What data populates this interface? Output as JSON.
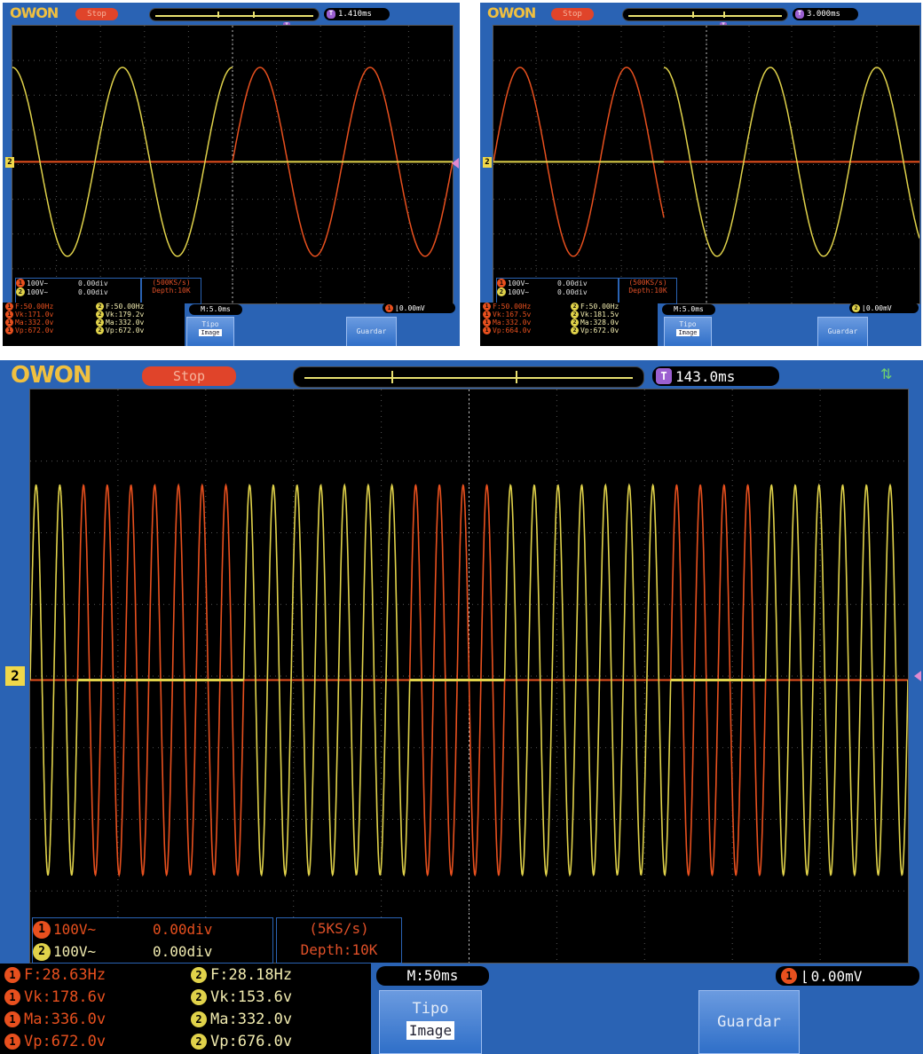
{
  "brand": "OWON",
  "colors": {
    "ch1": "#e8501e",
    "ch2": "#e0d24a",
    "frame": "#2a63b4",
    "trigger": "#9b5fd0"
  },
  "icons": {
    "usb": "usb-icon",
    "trigger_edge": "falling-edge-icon"
  },
  "scopes": [
    {
      "id": "small-left",
      "status": "Stop",
      "trigger_time": "1.410ms",
      "ch1_scale": "100V~",
      "ch1_offset": "0.00div",
      "ch2_scale": "100V~",
      "ch2_offset": "0.00div",
      "sample_rate": "(500KS/s)",
      "depth": "Depth:10K",
      "ch1_freq": "F:50.00Hz",
      "ch1_vk": "Vk:171.0v",
      "ch1_ma": "Ma:332.0v",
      "ch1_vp": "Vp:672.0v",
      "ch2_freq": "F:50.00Hz",
      "ch2_vk": "Vk:179.2v",
      "ch2_ma": "Ma:332.0v",
      "ch2_vp": "Vp:672.0v",
      "timebase": "M:5.0ms",
      "trigger_level": "0.00mV",
      "btn_tipo": "Tipo",
      "btn_image": "Image",
      "btn_guardar": "Guardar",
      "wave": {
        "ch2_start": 0.0,
        "ch2_end": 0.5,
        "ch1_start": 0.5,
        "ch1_end": 1.0,
        "cycles": 4
      }
    },
    {
      "id": "small-right",
      "status": "Stop",
      "trigger_time": "3.000ms",
      "ch1_scale": "100V~",
      "ch1_offset": "0.00div",
      "ch2_scale": "100V~",
      "ch2_offset": "0.00div",
      "sample_rate": "(500KS/s)",
      "depth": "Depth:10K",
      "ch1_freq": "F:50.00Hz",
      "ch1_vk": "Vk:167.5v",
      "ch1_ma": "Ma:332.0v",
      "ch1_vp": "Vp:664.0v",
      "ch2_freq": "F:50.00Hz",
      "ch2_vk": "Vk:181.5v",
      "ch2_ma": "Ma:328.0v",
      "ch2_vp": "Vp:672.0v",
      "timebase": "M:5.0ms",
      "trigger_level": "0.00mV",
      "btn_tipo": "Tipo",
      "btn_image": "Image",
      "btn_guardar": "Guardar",
      "wave": {
        "ch1_start": 0.0,
        "ch1_end": 0.4,
        "ch2_start": 0.4,
        "ch2_end": 1.0,
        "cycles": 4
      }
    },
    {
      "id": "large",
      "status": "Stop",
      "trigger_time": "143.0ms",
      "ch1_scale": "100V~",
      "ch1_offset": "0.00div",
      "ch2_scale": "100V~",
      "ch2_offset": "0.00div",
      "sample_rate": "(5KS/s)",
      "depth": "Depth:10K",
      "ch1_freq": "F:28.63Hz",
      "ch1_vk": "Vk:178.6v",
      "ch1_ma": "Ma:336.0v",
      "ch1_vp": "Vp:672.0v",
      "ch2_freq": "F:28.18Hz",
      "ch2_vk": "Vk:153.6v",
      "ch2_ma": "Ma:332.0v",
      "ch2_vp": "Vp:676.0v",
      "timebase": "M:50ms",
      "trigger_level": "0.00mV",
      "btn_tipo": "Tipo",
      "btn_image": "Image",
      "btn_guardar": "Guardar",
      "wave": {
        "cycles": 37
      }
    }
  ]
}
